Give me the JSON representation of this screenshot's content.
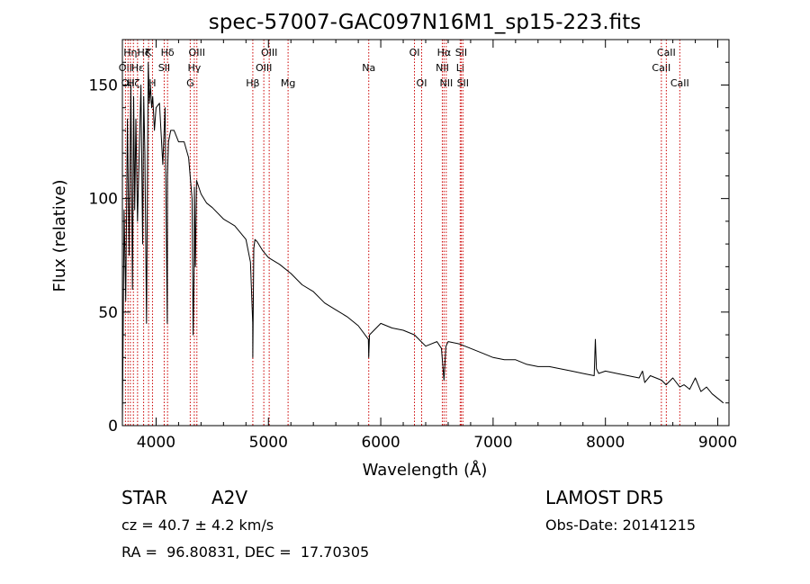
{
  "chart_data": {
    "type": "line",
    "title": "spec-57007-GAC097N16M1_sp15-223.fits",
    "xlabel": "Wavelength (Å)",
    "ylabel": "Flux (relative)",
    "xlim": [
      3700,
      9100
    ],
    "ylim": [
      0,
      170
    ],
    "xticks": [
      4000,
      5000,
      6000,
      7000,
      8000,
      9000
    ],
    "yticks": [
      0,
      50,
      100,
      150
    ],
    "grid": false,
    "line_color": "#000000",
    "marker_color": "#cc0000",
    "series": [
      {
        "x": [
          3700,
          3715,
          3730,
          3745,
          3760,
          3775,
          3790,
          3800,
          3810,
          3820,
          3835,
          3850,
          3865,
          3880,
          3890,
          3900,
          3915,
          3930,
          3940,
          3950,
          3960,
          3970,
          3985,
          4000,
          4030,
          4060,
          4080,
          4100,
          4101,
          4110,
          4130,
          4160,
          4200,
          4250,
          4290,
          4320,
          4330,
          4340,
          4341,
          4350,
          4360,
          4400,
          4450,
          4500,
          4600,
          4700,
          4800,
          4840,
          4860,
          4861,
          4870,
          4880,
          4900,
          4950,
          5000,
          5100,
          5200,
          5300,
          5400,
          5500,
          5600,
          5700,
          5800,
          5890,
          5893,
          5900,
          6000,
          6100,
          6200,
          6300,
          6400,
          6500,
          6540,
          6563,
          6580,
          6600,
          6700,
          6800,
          6900,
          7000,
          7100,
          7200,
          7300,
          7400,
          7500,
          7600,
          7700,
          7800,
          7900,
          7910,
          7920,
          7940,
          8000,
          8100,
          8200,
          8300,
          8330,
          8350,
          8400,
          8500,
          8540,
          8600,
          8662,
          8700,
          8750,
          8800,
          8850,
          8900,
          8950,
          9000,
          9050
        ],
        "values": [
          0,
          95,
          55,
          135,
          75,
          150,
          60,
          145,
          95,
          135,
          90,
          120,
          150,
          80,
          145,
          120,
          45,
          160,
          142,
          150,
          140,
          145,
          130,
          140,
          142,
          115,
          140,
          45,
          110,
          125,
          130,
          130,
          125,
          125,
          118,
          100,
          40,
          75,
          105,
          70,
          108,
          102,
          98,
          96,
          91,
          88,
          82,
          72,
          45,
          30,
          78,
          82,
          81,
          77,
          74,
          71,
          67,
          62,
          59,
          54,
          51,
          48,
          44,
          38,
          30,
          40,
          45,
          43,
          42,
          40,
          35,
          37,
          34,
          20,
          35,
          37,
          36,
          34,
          32,
          30,
          29,
          29,
          27,
          26,
          26,
          25,
          24,
          23,
          22,
          38,
          25,
          23,
          24,
          23,
          22,
          21,
          24,
          19,
          22,
          20,
          18,
          21,
          17,
          18,
          16,
          21,
          15,
          17,
          14,
          12,
          10
        ]
      }
    ],
    "line_markers": [
      {
        "x": 3727,
        "label": "OII",
        "row": 2
      },
      {
        "x": 3750,
        "label": "OII",
        "row": 3
      },
      {
        "x": 3771,
        "label": "Hη",
        "row": 1
      },
      {
        "x": 3798,
        "label": "Hζ",
        "row": 3
      },
      {
        "x": 3835,
        "label": "Hε",
        "row": 2
      },
      {
        "x": 3889,
        "label": "Hζ",
        "row": 1
      },
      {
        "x": 3933,
        "label": "K",
        "row": 1
      },
      {
        "x": 3968,
        "label": "H",
        "row": 3
      },
      {
        "x": 4072,
        "label": "SII",
        "row": 2
      },
      {
        "x": 4102,
        "label": "Hδ",
        "row": 1
      },
      {
        "x": 4304,
        "label": "G",
        "row": 3
      },
      {
        "x": 4340,
        "label": "Hγ",
        "row": 2
      },
      {
        "x": 4363,
        "label": "OIII",
        "row": 1
      },
      {
        "x": 4861,
        "label": "Hβ",
        "row": 3
      },
      {
        "x": 4959,
        "label": "OIII",
        "row": 2
      },
      {
        "x": 5007,
        "label": "OIII",
        "row": 1
      },
      {
        "x": 5175,
        "label": "Mg",
        "row": 3
      },
      {
        "x": 5893,
        "label": "Na",
        "row": 2
      },
      {
        "x": 6300,
        "label": "OI",
        "row": 1
      },
      {
        "x": 6364,
        "label": "OI",
        "row": 3
      },
      {
        "x": 6548,
        "label": "NII",
        "row": 2
      },
      {
        "x": 6563,
        "label": "Hα",
        "row": 1
      },
      {
        "x": 6583,
        "label": "NII",
        "row": 3
      },
      {
        "x": 6707,
        "label": "Li",
        "row": 2
      },
      {
        "x": 6716,
        "label": "SII",
        "row": 1
      },
      {
        "x": 6731,
        "label": "SII",
        "row": 3
      },
      {
        "x": 8498,
        "label": "CaII",
        "row": 2
      },
      {
        "x": 8542,
        "label": "CaII",
        "row": 1
      },
      {
        "x": 8662,
        "label": "CaII",
        "row": 3
      }
    ]
  },
  "info": {
    "class": "STAR",
    "subclass": "A2V",
    "survey": "LAMOST DR5",
    "cz": "cz = 40.7 ± 4.2 km/s",
    "obs_date": "Obs-Date: 20141215",
    "coords": "RA =  96.80831, DEC =  17.70305"
  }
}
